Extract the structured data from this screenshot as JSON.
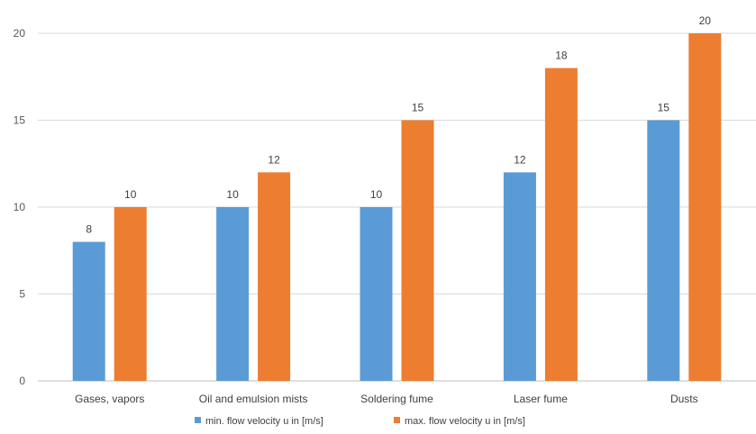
{
  "chart_data": {
    "type": "bar",
    "title": "",
    "xlabel": "",
    "ylabel": "",
    "categories": [
      "Gases, vapors",
      "Oil and emulsion mists",
      "Soldering fume",
      "Laser fume",
      "Dusts"
    ],
    "series": [
      {
        "name": "min. flow velocity u in [m/s]",
        "color": "#5b9bd5",
        "values": [
          8,
          10,
          10,
          12,
          15
        ]
      },
      {
        "name": "max. flow velocity u in [m/s]",
        "color": "#ed7d31",
        "values": [
          10,
          12,
          15,
          18,
          20
        ]
      }
    ],
    "ylim": [
      0,
      20
    ],
    "yticks": [
      0,
      5,
      10,
      15,
      20
    ],
    "grid": true,
    "legend": "bottom",
    "data_labels": true
  }
}
